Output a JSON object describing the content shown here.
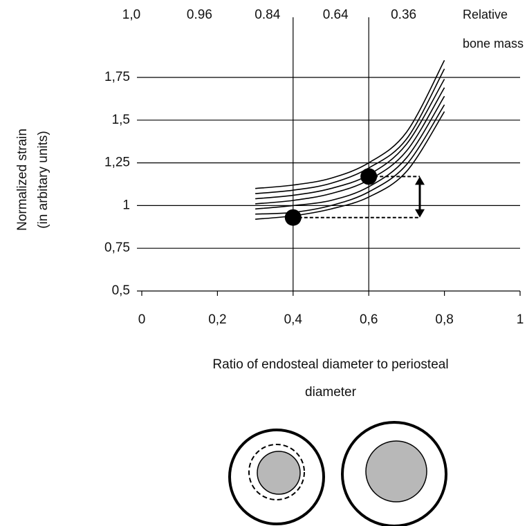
{
  "chart_data": {
    "type": "line",
    "y_title": [
      "Normalized strain",
      "(in arbitary units)"
    ],
    "x_title": [
      "Ratio of endosteal diameter to periosteal",
      "diameter"
    ],
    "top_title": [
      "Relative",
      "bone mass"
    ],
    "x": [
      0.3,
      0.4,
      0.5,
      0.6,
      0.7,
      0.8
    ],
    "series": [
      {
        "color": "#000000",
        "values": [
          0.92,
          0.94,
          0.98,
          1.05,
          1.2,
          1.55
        ]
      },
      {
        "color": "#000000",
        "values": [
          0.95,
          0.96,
          1.0,
          1.08,
          1.24,
          1.59
        ]
      },
      {
        "color": "#000000",
        "values": [
          0.98,
          1.0,
          1.03,
          1.11,
          1.28,
          1.64
        ]
      },
      {
        "color": "#000000",
        "values": [
          1.01,
          1.03,
          1.07,
          1.15,
          1.32,
          1.69
        ]
      },
      {
        "color": "#000000",
        "values": [
          1.04,
          1.06,
          1.1,
          1.18,
          1.36,
          1.74
        ]
      },
      {
        "color": "#000000",
        "values": [
          1.07,
          1.09,
          1.13,
          1.22,
          1.39,
          1.8
        ]
      },
      {
        "color": "#000000",
        "values": [
          1.1,
          1.12,
          1.16,
          1.25,
          1.43,
          1.85
        ]
      }
    ],
    "markers": {
      "x": [
        0.4,
        0.6
      ],
      "values": [
        0.93,
        1.17
      ],
      "color": "#000000"
    },
    "xlim": [
      0,
      1
    ],
    "xticks": [
      0,
      {
        "value": 0.2,
        "label": "0,2"
      },
      {
        "value": 0.4,
        "label": "0,4"
      },
      {
        "value": 0.6,
        "label": "0,6"
      },
      {
        "value": 0.8,
        "label": "0,8"
      },
      1
    ],
    "top_ticks": [
      {
        "value": 0,
        "label": "1,0"
      },
      {
        "value": 0.2,
        "label": "0.96"
      },
      {
        "value": 0.4,
        "label": "0.84"
      },
      {
        "value": 0.6,
        "label": "0.64"
      },
      {
        "value": 0.8,
        "label": "0.36"
      }
    ],
    "ylim": [
      0.5,
      1.75
    ],
    "yticks": [
      {
        "value": 0.5,
        "label": "0,5"
      },
      {
        "value": 0.75,
        "label": "0,75"
      },
      1,
      {
        "value": 1.25,
        "label": "1,25"
      },
      {
        "value": 1.5,
        "label": "1,5"
      },
      {
        "value": 1.75,
        "label": "1,75"
      }
    ],
    "vertical_gridlines": [
      0.4,
      0.6
    ],
    "grid": true
  }
}
